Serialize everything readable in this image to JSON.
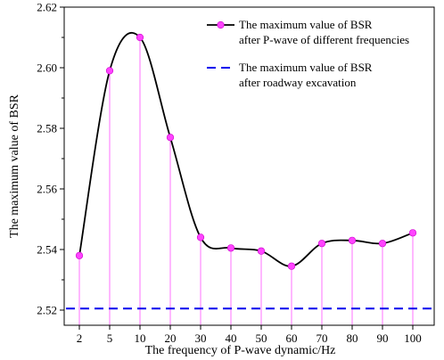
{
  "chart_data": {
    "type": "line",
    "xlabel": "The frequency of P-wave dynamic/Hz",
    "ylabel": "The maximum value of BSR",
    "categories": [
      "2",
      "5",
      "10",
      "20",
      "30",
      "40",
      "50",
      "60",
      "70",
      "80",
      "90",
      "100"
    ],
    "ylim": [
      2.515,
      2.62
    ],
    "yticks": [
      "2.52",
      "2.54",
      "2.56",
      "2.58",
      "2.60",
      "2.62"
    ],
    "grid": false,
    "legend_position": "top-right",
    "series": [
      {
        "name": "The maximum value of BSR after P-wave of different frequencies",
        "legend_lines": [
          "The maximum value of BSR",
          "after P-wave of different frequencies"
        ],
        "values": [
          2.538,
          2.599,
          2.61,
          2.577,
          2.544,
          2.5405,
          2.5395,
          2.5345,
          2.542,
          2.543,
          2.542,
          2.5455
        ],
        "line_color": "#000000",
        "marker_color": "#ff44ff",
        "stem_color": "#ff88ff"
      },
      {
        "name": "The maximum value of BSR after roadway excavation",
        "legend_lines": [
          "The maximum value of BSR",
          "after roadway excavation"
        ],
        "constant": 2.5205,
        "line_color": "#0000ee",
        "style": "dashed"
      }
    ]
  }
}
